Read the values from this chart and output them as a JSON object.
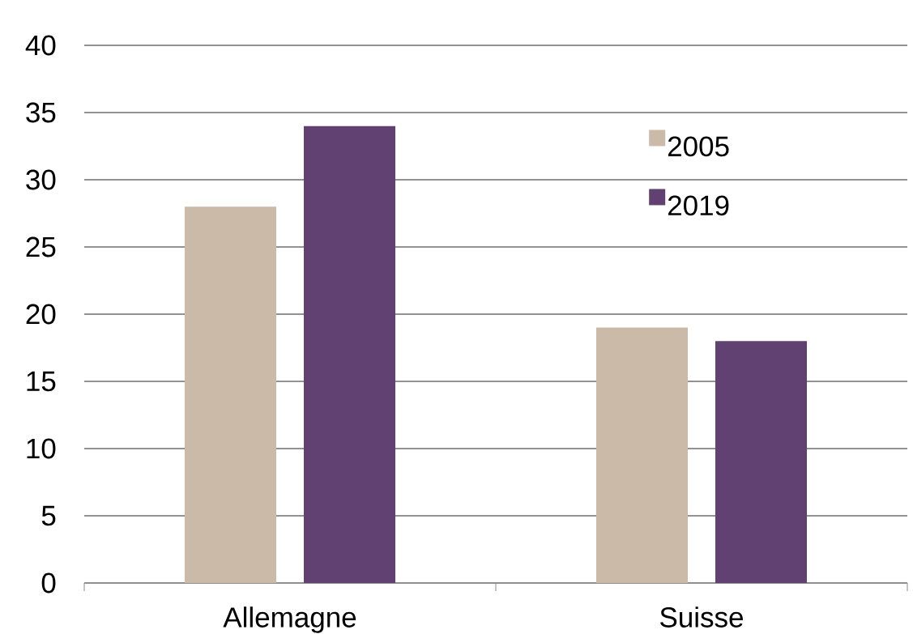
{
  "chart_data": {
    "type": "bar",
    "categories": [
      "Allemagne",
      "Suisse"
    ],
    "series": [
      {
        "name": "2005",
        "color": "#cbbaa8",
        "values": [
          28,
          19
        ]
      },
      {
        "name": "2019",
        "color": "#614171",
        "values": [
          34,
          18
        ]
      }
    ],
    "ylim": [
      0,
      40
    ],
    "yticks": [
      0,
      5,
      10,
      15,
      20,
      25,
      30,
      35,
      40
    ],
    "grid": "y",
    "legend": "top right"
  }
}
